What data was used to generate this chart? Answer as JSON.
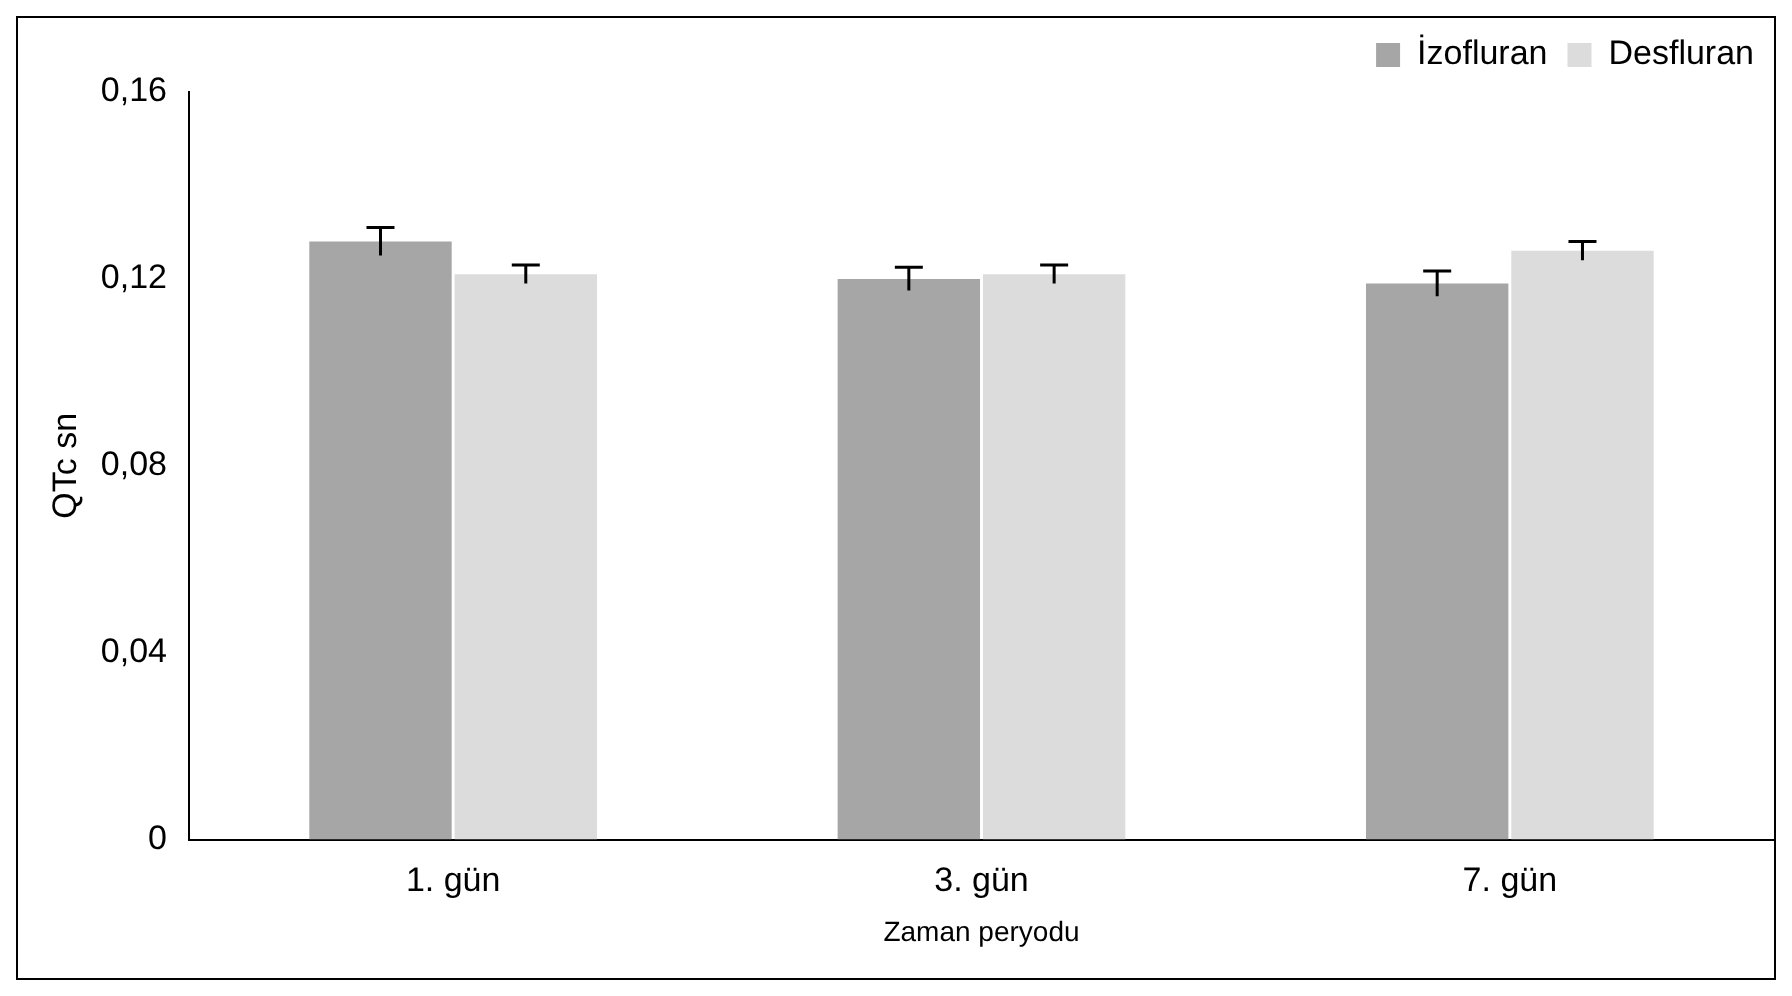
{
  "chart_data": {
    "type": "bar",
    "xlabel": "Zaman peryodu",
    "ylabel": "QTc sn",
    "categories": [
      "1. gün",
      "3. gün",
      "7. gün"
    ],
    "series": [
      {
        "name": "İzofluran",
        "color": "#a6a6a6",
        "values": [
          0.128,
          0.12,
          0.119
        ],
        "errors": [
          0.003,
          0.0025,
          0.0027
        ]
      },
      {
        "name": "Desfluran",
        "color": "#dcdcdc",
        "values": [
          0.121,
          0.121,
          0.126
        ],
        "errors": [
          0.002,
          0.002,
          0.002
        ]
      }
    ],
    "ylim": [
      0,
      0.16
    ],
    "yticks": [
      0,
      {
        "value": 0.04,
        "label": "0,04"
      },
      {
        "value": 0.08,
        "label": "0,08"
      },
      {
        "value": 0.12,
        "label": "0,12"
      },
      {
        "value": 0.16,
        "label": "0,16"
      }
    ],
    "grid": false,
    "legend": "top right"
  }
}
